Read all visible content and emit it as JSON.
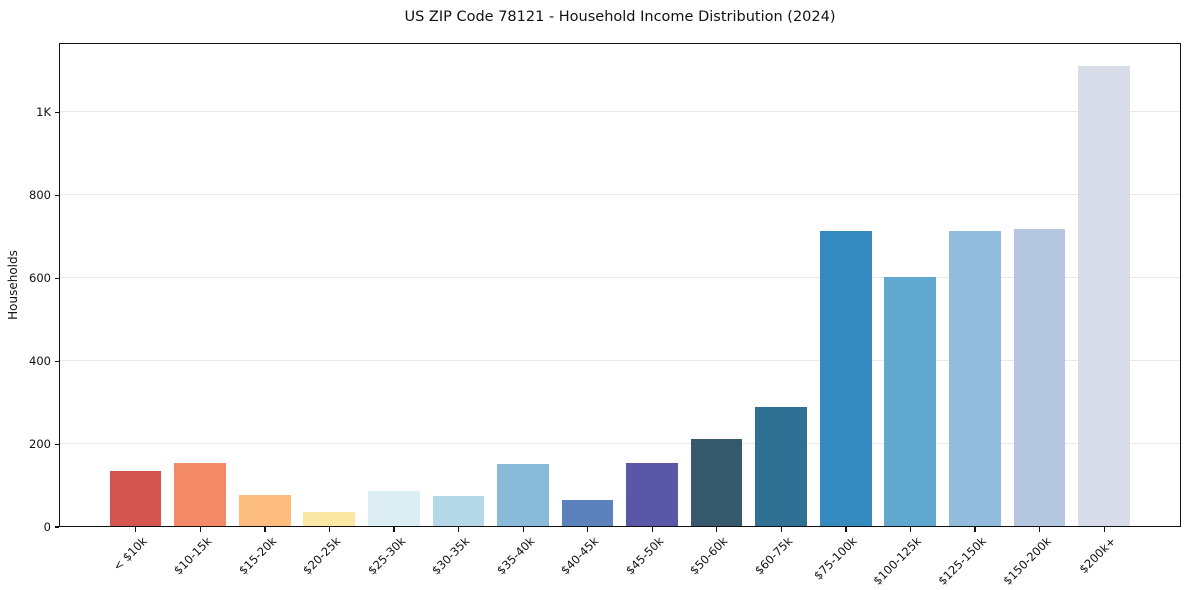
{
  "chart_data": {
    "type": "bar",
    "title": "US ZIP Code 78121 - Household Income Distribution (2024)",
    "xlabel": "",
    "ylabel": "Households",
    "categories": [
      "< $10k",
      "$10-15k",
      "$15-20k",
      "$20-25k",
      "$25-30k",
      "$30-35k",
      "$35-40k",
      "$40-45k",
      "$45-50k",
      "$50-60k",
      "$60-75k",
      "$75-100k",
      "$100-125k",
      "$125-150k",
      "$150-200k",
      "$200k+"
    ],
    "values": [
      132,
      152,
      74,
      34,
      84,
      72,
      150,
      62,
      152,
      210,
      288,
      713,
      600,
      711,
      716,
      1110
    ],
    "bar_colors": [
      "#d45452",
      "#f28a68",
      "#fcbd7e",
      "#fbe8a4",
      "#ddedf4",
      "#b5d8e9",
      "#89bada",
      "#5b82bc",
      "#5a57a7",
      "#36596d",
      "#2f7095",
      "#348abf",
      "#60a8cf",
      "#92bcdc",
      "#b5c7e0",
      "#d8dbe8"
    ],
    "yticks": {
      "values": [
        0,
        200,
        400,
        600,
        800,
        1000
      ],
      "labels": [
        "0",
        "200",
        "400",
        "600",
        "800",
        "1K"
      ]
    },
    "ylim": [
      0,
      1168
    ],
    "grid": "horizontal",
    "legend": "none",
    "background": "#ffffff",
    "spine_color": "#111111",
    "grid_color": "#e8e8e8"
  }
}
